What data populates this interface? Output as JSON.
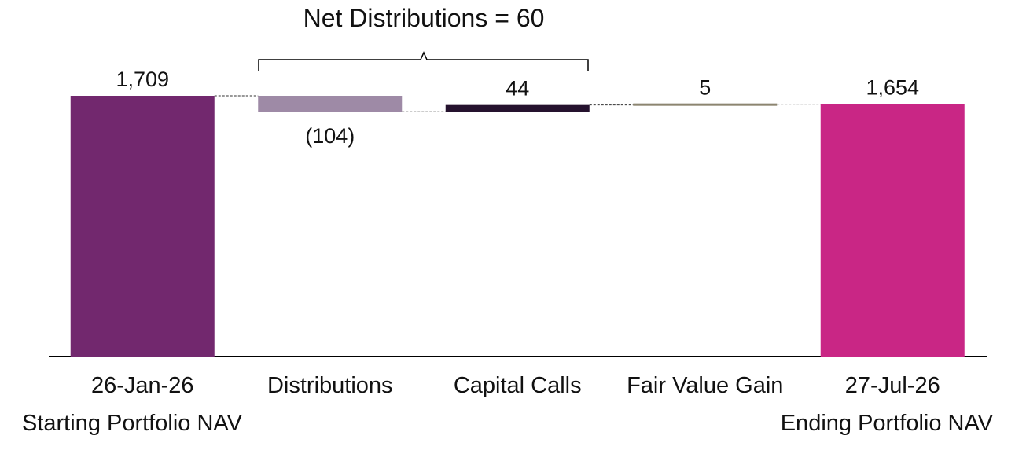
{
  "chart_data": {
    "type": "waterfall",
    "annotation": "Net Distributions = 60",
    "bars": [
      {
        "name": "Starting Portfolio NAV",
        "label_line1": "26-Jan-26",
        "label_line2": "Starting Portfolio NAV",
        "kind": "total",
        "value": 1709,
        "value_label": "1,709",
        "color": "#72286E"
      },
      {
        "name": "Distributions",
        "label_line1": "Distributions",
        "label_line2": "",
        "kind": "delta",
        "value": -104,
        "value_label": "(104)",
        "color": "#9E8AA6"
      },
      {
        "name": "Capital Calls",
        "label_line1": "Capital Calls",
        "label_line2": "",
        "kind": "delta",
        "value": 44,
        "value_label": "44",
        "color": "#25122E"
      },
      {
        "name": "Fair Value Gain",
        "label_line1": "Fair Value Gain",
        "label_line2": "",
        "kind": "delta",
        "value": 5,
        "value_label": "5",
        "color": "#8C8570"
      },
      {
        "name": "Ending Portfolio NAV",
        "label_line1": "27-Jul-26",
        "label_line2": "Ending Portfolio NAV",
        "kind": "total",
        "value": 1654,
        "value_label": "1,654",
        "color": "#C92685"
      }
    ],
    "ylim": [
      0,
      1709
    ],
    "grid": false,
    "legend": "none"
  }
}
